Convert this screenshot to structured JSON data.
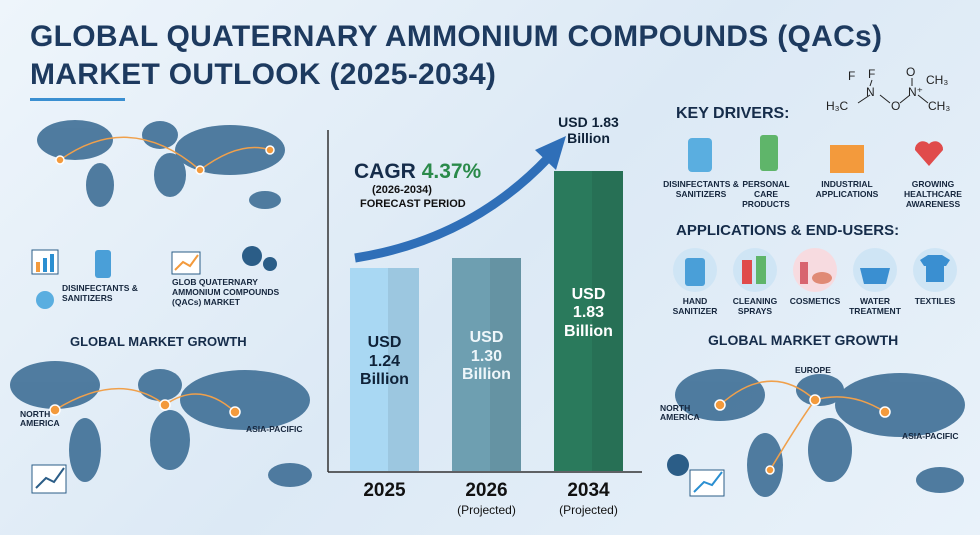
{
  "header": {
    "title_line1": "GLOBAL QUATERNARY AMMONIUM COMPOUNDS (QACs)",
    "title_line2": "MARKET OUTLOOK (2025-2034)"
  },
  "molecule": {
    "atoms": [
      "H₃C",
      "F",
      "F",
      "N",
      "O",
      "O",
      "N⁺",
      "CH₃",
      "CH₃"
    ]
  },
  "left_panel": {
    "items": [
      "DISINFECTANTS & SANITIZERS",
      "GLOB QUATERNARY AMMONIUM COMPOUNDS (QACs) MARKET"
    ],
    "map_title": "GLOBAL MARKET GROWTH",
    "regions": [
      "NORTH AMERICA",
      "ASIA-PACIFIC"
    ]
  },
  "chart_data": {
    "type": "bar",
    "categories": [
      "2025",
      "2026",
      "2034"
    ],
    "category_notes": [
      null,
      "(Projected)",
      "(Projected)"
    ],
    "values": [
      1.24,
      1.3,
      1.83
    ],
    "value_labels": [
      "USD 1.24 Billion",
      "USD 1.30 Billion",
      "USD 1.83 Billion"
    ],
    "colors": [
      "#a9d8f3",
      "#6e9fb1",
      "#2a7a5c"
    ],
    "annotations": {
      "cagr_label": "CAGR",
      "cagr_value": "4.37%",
      "period": "(2026-2034)",
      "note": "FORECAST PERIOD"
    }
  },
  "right_panel": {
    "drivers_title": "KEY DRIVERS:",
    "drivers": [
      "DISINFECTANTS & SANITIZERS",
      "PERSONAL CARE PRODUCTS",
      "INDUSTRIAL APPLICATIONS",
      "GROWING HEALTHCARE AWARENESS"
    ],
    "applications_title": "APPLICATIONS & END-USERS:",
    "applications": [
      "HAND SANITIZER",
      "CLEANING SPRAYS",
      "COSMETICS",
      "WATER TREATMENT",
      "TEXTILES"
    ],
    "map_title": "GLOBAL MARKET GROWTH",
    "regions": [
      "EUROPE",
      "NORTH AMERICA",
      "ASIA-PACIFIC"
    ]
  }
}
